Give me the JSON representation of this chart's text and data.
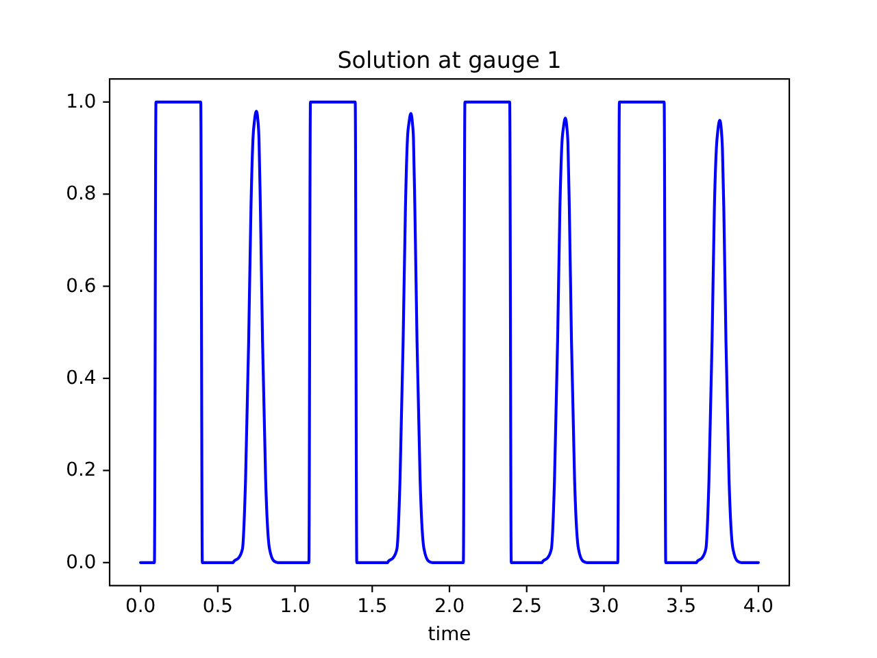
{
  "chart_data": {
    "type": "line",
    "title": "Solution at gauge 1",
    "xlabel": "time",
    "color": "#0000ff",
    "x": [
      0,
      0.09,
      0.1,
      0.39,
      0.4,
      0.6,
      0.605,
      0.635,
      0.66,
      0.68,
      0.7,
      0.715,
      0.728,
      0.738,
      0.75,
      0.76,
      0.767,
      0.776,
      0.79,
      0.81,
      0.835,
      0.865,
      0.89,
      1.09,
      1.1,
      1.39,
      1.4,
      1.6,
      1.605,
      1.635,
      1.66,
      1.68,
      1.7,
      1.715,
      1.728,
      1.738,
      1.75,
      1.76,
      1.767,
      1.776,
      1.79,
      1.81,
      1.835,
      1.865,
      1.89,
      2.09,
      2.1,
      2.39,
      2.4,
      2.6,
      2.605,
      2.635,
      2.66,
      2.68,
      2.7,
      2.715,
      2.728,
      2.738,
      2.75,
      2.76,
      2.767,
      2.776,
      2.79,
      2.81,
      2.835,
      2.865,
      2.89,
      3.09,
      3.1,
      3.39,
      3.4,
      3.6,
      3.605,
      3.635,
      3.66,
      3.68,
      3.7,
      3.715,
      3.728,
      3.738,
      3.75,
      3.76,
      3.767,
      3.776,
      3.79,
      3.81,
      3.835,
      3.865,
      3.89,
      4
    ],
    "values": [
      0,
      0,
      1,
      1,
      0,
      0,
      0.003,
      0.01,
      0.03,
      0.18,
      0.48,
      0.77,
      0.92,
      0.96,
      0.98,
      0.96,
      0.92,
      0.77,
      0.48,
      0.18,
      0.03,
      0.003,
      0,
      0,
      1,
      1,
      0,
      0,
      0.003,
      0.01,
      0.03,
      0.18,
      0.48,
      0.77,
      0.92,
      0.955,
      0.975,
      0.955,
      0.92,
      0.77,
      0.48,
      0.18,
      0.03,
      0.003,
      0,
      0,
      1,
      1,
      0,
      0,
      0.003,
      0.01,
      0.03,
      0.18,
      0.48,
      0.77,
      0.91,
      0.945,
      0.965,
      0.945,
      0.91,
      0.77,
      0.48,
      0.18,
      0.03,
      0.003,
      0,
      0,
      1,
      1,
      0,
      0,
      0.003,
      0.01,
      0.03,
      0.18,
      0.48,
      0.77,
      0.9,
      0.94,
      0.96,
      0.94,
      0.9,
      0.77,
      0.48,
      0.18,
      0.03,
      0.003,
      0,
      0
    ],
    "xlim": [
      -0.2,
      4.2
    ],
    "ylim": [
      -0.05,
      1.05
    ],
    "xticks": [
      {
        "value": 0,
        "label": "0.0"
      },
      0.5,
      {
        "value": 1,
        "label": "1.0"
      },
      1.5,
      {
        "value": 2,
        "label": "2.0"
      },
      2.5,
      {
        "value": 3,
        "label": "3.0"
      },
      3.5,
      {
        "value": 4,
        "label": "4.0"
      }
    ],
    "yticks": [
      {
        "value": 0,
        "label": "0.0"
      },
      0.2,
      0.4,
      0.6,
      0.8,
      {
        "value": 1,
        "label": "1.0"
      }
    ]
  }
}
